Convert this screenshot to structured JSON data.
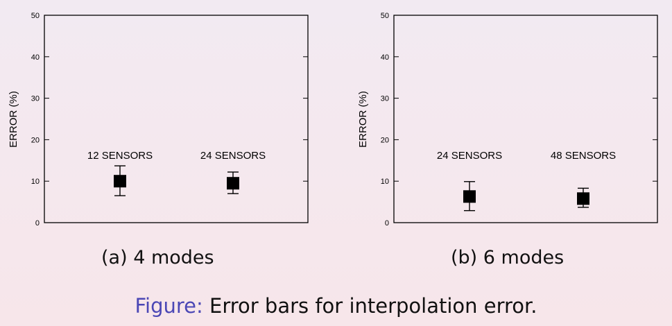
{
  "chart_data": [
    {
      "type": "scatter",
      "subcaption": "(a) 4 modes",
      "ylabel": "ERROR (%)",
      "ylim": [
        0,
        50
      ],
      "yticks": [
        0,
        10,
        20,
        30,
        40,
        50
      ],
      "points": [
        {
          "label": "12 SENSORS",
          "y": 10.0,
          "err_low": 6.5,
          "err_high": 13.7
        },
        {
          "label": "24 SENSORS",
          "y": 9.5,
          "err_low": 7.0,
          "err_high": 12.2
        }
      ]
    },
    {
      "type": "scatter",
      "subcaption": "(b) 6 modes",
      "ylabel": "ERROR (%)",
      "ylim": [
        0,
        50
      ],
      "yticks": [
        0,
        10,
        20,
        30,
        40,
        50
      ],
      "points": [
        {
          "label": "24 SENSORS",
          "y": 6.3,
          "err_low": 2.9,
          "err_high": 9.9
        },
        {
          "label": "48 SENSORS",
          "y": 5.8,
          "err_low": 3.7,
          "err_high": 8.3
        }
      ]
    }
  ],
  "figure_caption": {
    "label": "Figure:",
    "text": "Error bars for interpolation error."
  }
}
